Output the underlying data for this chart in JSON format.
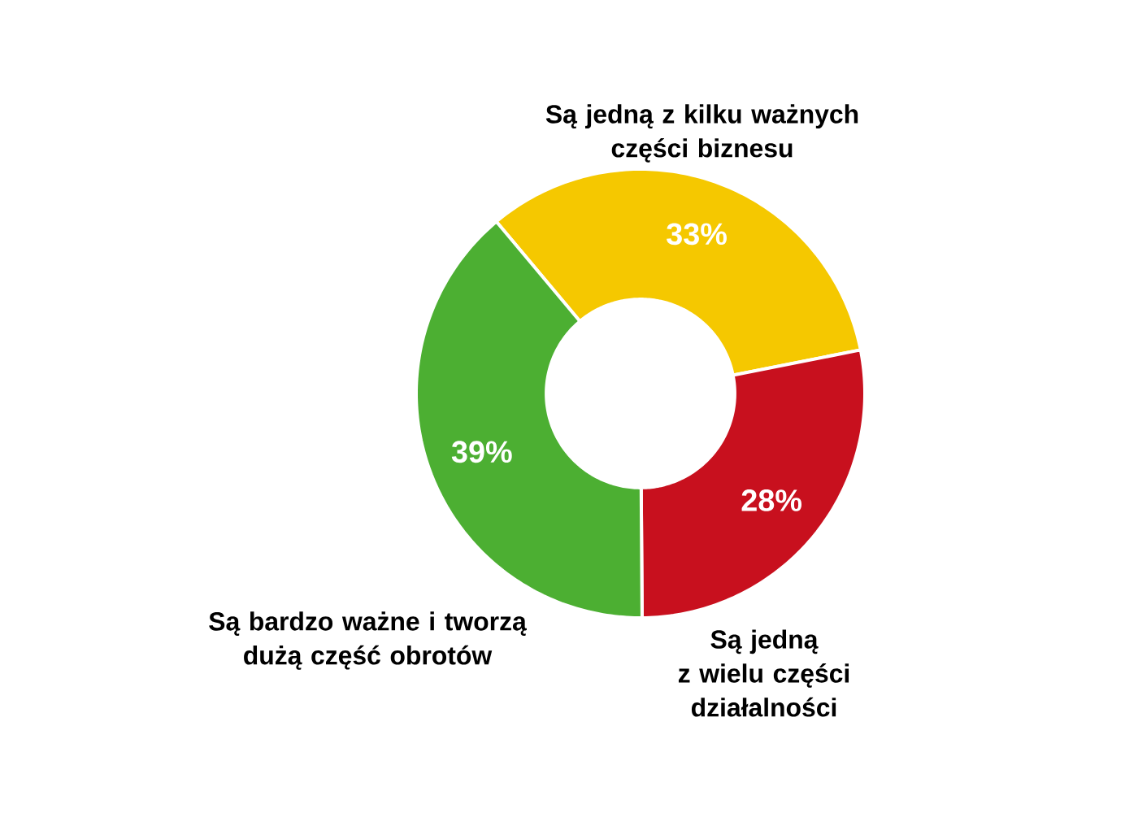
{
  "chart_data": {
    "type": "donut",
    "categories": [
      "Są jedną z kilku ważnych\nczęści biznesu",
      "Są jedną\nz wielu części\ndziałalności",
      "Są bardzo ważne i tworzą\ndużą część obrotów"
    ],
    "values": [
      33,
      28,
      39
    ],
    "colors": [
      "#f5c800",
      "#c8101e",
      "#4caf32"
    ],
    "value_labels": [
      "33%",
      "28%",
      "39%"
    ]
  }
}
